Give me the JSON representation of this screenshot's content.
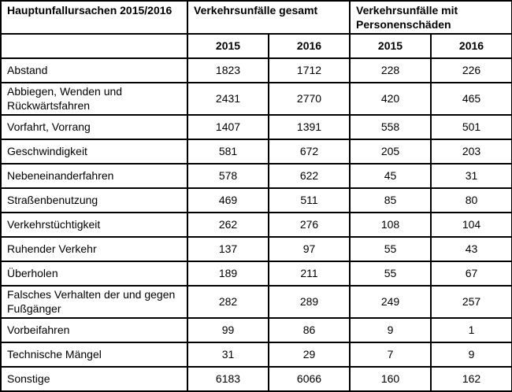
{
  "table": {
    "corner_header": "Hauptunfallursachen 2015/2016",
    "group_headers": [
      "Verkehrsunfälle gesamt",
      "Verkehrsunfälle mit Personenschäden"
    ],
    "year_headers": [
      "2015",
      "2016",
      "2015",
      "2016"
    ],
    "rows": [
      {
        "label": "Abstand",
        "values": [
          "1823",
          "1712",
          "228",
          "226"
        ]
      },
      {
        "label": "Abbiegen, Wenden und Rückwärtsfahren",
        "values": [
          "2431",
          "2770",
          "420",
          "465"
        ]
      },
      {
        "label": "Vorfahrt, Vorrang",
        "values": [
          "1407",
          "1391",
          "558",
          "501"
        ]
      },
      {
        "label": "Geschwindigkeit",
        "values": [
          "581",
          "672",
          "205",
          "203"
        ]
      },
      {
        "label": "Nebeneinanderfahren",
        "values": [
          "578",
          "622",
          "45",
          "31"
        ]
      },
      {
        "label": "Straßenbenutzung",
        "values": [
          "469",
          "511",
          "85",
          "80"
        ]
      },
      {
        "label": "Verkehrstüchtigkeit",
        "values": [
          "262",
          "276",
          "108",
          "104"
        ]
      },
      {
        "label": "Ruhender Verkehr",
        "values": [
          "137",
          "97",
          "55",
          "43"
        ]
      },
      {
        "label": "Überholen",
        "values": [
          "189",
          "211",
          "55",
          "67"
        ]
      },
      {
        "label": "Falsches Verhalten der und gegen Fußgänger",
        "values": [
          "282",
          "289",
          "249",
          "257"
        ]
      },
      {
        "label": "Vorbeifahren",
        "values": [
          "99",
          "86",
          "9",
          "1"
        ]
      },
      {
        "label": "Technische Mängel",
        "values": [
          "31",
          "29",
          "7",
          "9"
        ]
      },
      {
        "label": "Sonstige",
        "values": [
          "6183",
          "6066",
          "160",
          "162"
        ]
      }
    ],
    "colors": {
      "border": "#000000",
      "background": "#ffffff",
      "text": "#000000"
    }
  }
}
